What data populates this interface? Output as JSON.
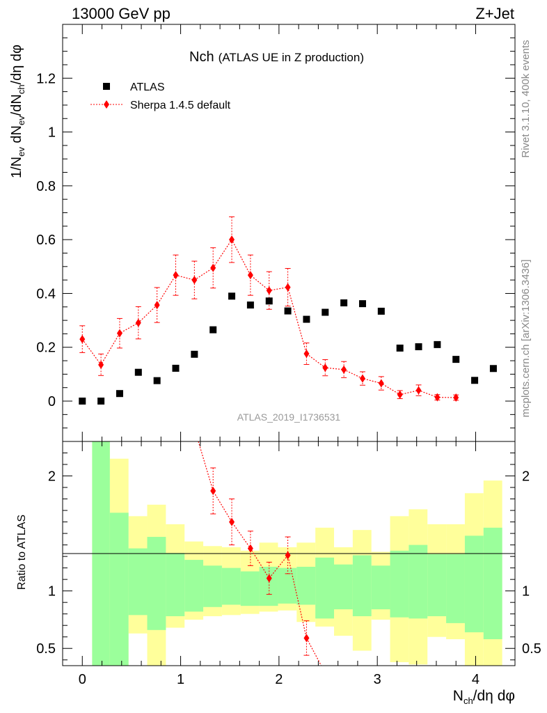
{
  "header": {
    "left_label": "13000 GeV pp",
    "right_label": "Z+Jet"
  },
  "side_labels": {
    "rivet": "Rivet 3.1.10,  400k events",
    "mcplots": "mcplots.cern.ch [arXiv:1306.3436]"
  },
  "watermark": "ATLAS_2019_I1736531",
  "colors": {
    "data": "#000000",
    "mc": "#ff0000",
    "band_inner": "#9bff9b",
    "band_outer": "#ffff9b"
  },
  "chart_data": [
    {
      "type": "scatter",
      "panel": "main",
      "title": "Nch",
      "subtitle": "(ATLAS UE in Z production)",
      "ylabel": "1/N_ev dN_ev/dN_ch/dη dφ",
      "xlim": [
        -0.2,
        4.4
      ],
      "ylim": [
        -0.15,
        1.4
      ],
      "yticks": [
        "0",
        "0.2",
        "0.4",
        "0.6",
        "0.8",
        "1",
        "1.2"
      ],
      "legend": {
        "position": "top-left",
        "entries": [
          "ATLAS",
          "Sherpa 1.4.5 default"
        ]
      },
      "series": [
        {
          "name": "ATLAS",
          "marker": "square",
          "x": [
            0.0,
            0.19,
            0.38,
            0.57,
            0.76,
            0.95,
            1.14,
            1.33,
            1.52,
            1.71,
            1.9,
            2.09,
            2.28,
            2.47,
            2.66,
            2.85,
            3.04,
            3.23,
            3.42,
            3.61,
            3.8,
            3.99,
            4.18
          ],
          "y": [
            0.0,
            0.0,
            0.028,
            0.107,
            0.076,
            0.122,
            0.174,
            0.265,
            0.39,
            0.357,
            0.372,
            0.335,
            0.304,
            0.33,
            0.365,
            0.362,
            0.334,
            0.197,
            0.202,
            0.21,
            0.155,
            0.077,
            0.121
          ]
        },
        {
          "name": "Sherpa 1.4.5 default",
          "marker": "diamond",
          "x": [
            0.0,
            0.19,
            0.38,
            0.57,
            0.76,
            0.95,
            1.14,
            1.33,
            1.52,
            1.71,
            1.9,
            2.09,
            2.28,
            2.47,
            2.66,
            2.85,
            3.04,
            3.23,
            3.42,
            3.61,
            3.8
          ],
          "y": [
            0.23,
            0.135,
            0.252,
            0.291,
            0.357,
            0.468,
            0.45,
            0.495,
            0.6,
            0.468,
            0.411,
            0.423,
            0.176,
            0.124,
            0.117,
            0.084,
            0.066,
            0.024,
            0.04,
            0.014,
            0.013
          ],
          "yerr": [
            0.05,
            0.04,
            0.055,
            0.06,
            0.065,
            0.075,
            0.07,
            0.075,
            0.085,
            0.075,
            0.07,
            0.07,
            0.04,
            0.03,
            0.03,
            0.025,
            0.025,
            0.015,
            0.02,
            0.01,
            0.01
          ]
        }
      ]
    },
    {
      "type": "area",
      "panel": "ratio",
      "ylabel": "Ratio to ATLAS",
      "xlabel": "N_ch/dη dφ",
      "xlim": [
        -0.2,
        4.4
      ],
      "ylim": [
        0.35,
        2.3
      ],
      "yticks": [
        "0.5",
        "1",
        "2"
      ],
      "xticks": [
        "0",
        "1",
        "2",
        "3",
        "4"
      ],
      "bin_edges": [
        0.1,
        0.28,
        0.47,
        0.66,
        0.85,
        1.04,
        1.23,
        1.42,
        1.61,
        1.8,
        1.99,
        2.18,
        2.37,
        2.56,
        2.75,
        2.94,
        3.13,
        3.32,
        3.51,
        3.7,
        3.89,
        4.08,
        4.27
      ],
      "band_inner": {
        "lo": [
          0.3,
          0.3,
          0.79,
          0.66,
          0.78,
          0.82,
          0.86,
          0.88,
          0.87,
          0.87,
          0.89,
          0.88,
          0.76,
          0.84,
          0.78,
          0.84,
          0.77,
          0.76,
          0.78,
          0.72,
          0.64,
          0.58
        ],
        "hi": [
          2.4,
          1.68,
          1.37,
          1.47,
          1.33,
          1.27,
          1.22,
          1.2,
          1.17,
          1.21,
          1.2,
          1.21,
          1.29,
          1.23,
          1.31,
          1.22,
          1.35,
          1.4,
          1.32,
          1.32,
          1.48,
          1.55
        ]
      },
      "band_outer": {
        "lo": [
          0.3,
          0.3,
          0.63,
          0.3,
          0.68,
          0.75,
          0.78,
          0.79,
          0.8,
          0.82,
          0.83,
          0.73,
          0.69,
          0.61,
          0.48,
          0.75,
          0.38,
          0.36,
          0.6,
          0.58,
          0.3,
          0.3
        ],
        "hi": [
          2.4,
          2.15,
          1.65,
          1.75,
          1.58,
          1.43,
          1.39,
          1.38,
          1.35,
          1.42,
          1.38,
          1.42,
          1.55,
          1.38,
          1.53,
          1.34,
          1.65,
          1.71,
          1.58,
          1.58,
          1.85,
          1.96
        ]
      },
      "series": [
        {
          "name": "Sherpa 1.4.5 default / ATLAS",
          "marker": "diamond",
          "x": [
            1.33,
            1.52,
            1.71,
            1.9,
            2.09,
            2.28
          ],
          "y": [
            1.87,
            1.6,
            1.37,
            1.11,
            1.31,
            0.59
          ],
          "yerr": [
            0.2,
            0.2,
            0.15,
            0.14,
            0.16,
            0.15
          ]
        }
      ]
    }
  ]
}
